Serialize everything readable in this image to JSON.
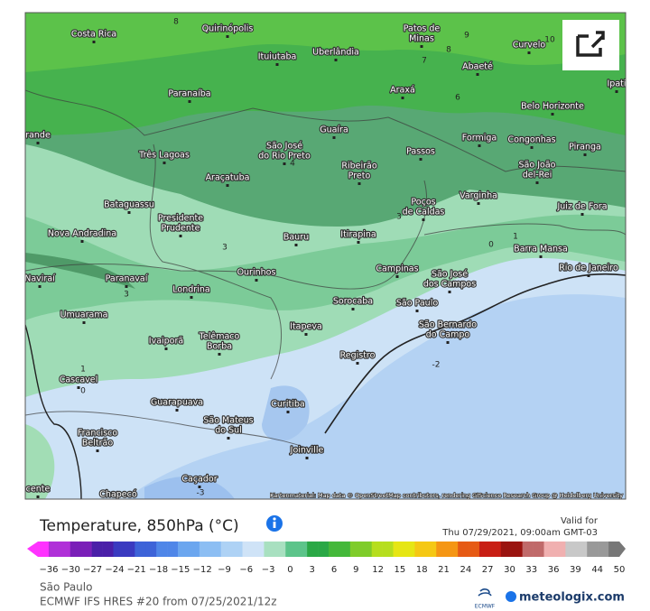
{
  "map": {
    "cities": [
      [
        "Costa Rica"
      ],
      [
        "Quirinópolis"
      ],
      [
        "Patos de",
        "Minas"
      ],
      [
        "Curvelo"
      ],
      [
        "Ituiutaba"
      ],
      [
        "Uberlândia"
      ],
      [
        "Abaeté"
      ],
      [
        "Ipati"
      ],
      [
        "Paranaíba"
      ],
      [
        "Araxá"
      ],
      [
        "Belo Horizonte"
      ],
      [
        "rande"
      ],
      [
        "Guaíra"
      ],
      [
        "Formiga"
      ],
      [
        "Congonhas"
      ],
      [
        "Três Lagoas"
      ],
      [
        "São José",
        "do Rio Preto"
      ],
      [
        "Passos"
      ],
      [
        "Piranga"
      ],
      [
        "Ribeirão",
        "Preto"
      ],
      [
        "São João",
        "del-Rei"
      ],
      [
        "Araçatuba"
      ],
      [
        "Poços",
        "de Caldas"
      ],
      [
        "Varginha"
      ],
      [
        "Juiz de Fora"
      ],
      [
        "Bataguassu"
      ],
      [
        "Presidente",
        "Prudente"
      ],
      [
        "Nova Andradina"
      ],
      [
        "Bauru"
      ],
      [
        "Itirapina"
      ],
      [
        "Barra Mansa"
      ],
      [
        "Rio de Janeiro"
      ],
      [
        "Naviraí"
      ],
      [
        "Paranavaí"
      ],
      [
        "Ourinhos"
      ],
      [
        "Campinas"
      ],
      [
        "São José",
        "dos Campos"
      ],
      [
        "Londrina"
      ],
      [
        "Sorocaba"
      ],
      [
        "São Paulo"
      ],
      [
        "São Bernardo",
        "do Campo"
      ],
      [
        "Umuarama"
      ],
      [
        "Itapeva"
      ],
      [
        "Ivaiporã"
      ],
      [
        "Telêmaco",
        "Borba"
      ],
      [
        "Registro"
      ],
      [
        "Cascavel"
      ],
      [
        "Guarapuava"
      ],
      [
        "Curitiba"
      ],
      [
        "São Mateus",
        "do Sul"
      ],
      [
        "Francisco",
        "Beltrão"
      ],
      [
        "Joinville"
      ],
      [
        "Caçador"
      ],
      [
        "Chapecó"
      ],
      [
        "cente"
      ]
    ],
    "contours": [
      "8",
      "9",
      "8",
      "7",
      "10",
      "6",
      "4",
      "3",
      "3",
      "3",
      "1",
      "0",
      "1",
      "0",
      "-2",
      "-3"
    ],
    "attribution": "Kartenmaterial: Map data © OpenStreetMap contributors, rendering GIScience Research Group @ Heidelberg University"
  },
  "legend": {
    "title": "Temperature, 850hPa (°C)",
    "valid_label": "Valid for",
    "valid_time": "Thu 07/29/2021, 09:00am GMT-03",
    "ticks": [
      "−36",
      "−30",
      "−27",
      "−24",
      "−21",
      "−18",
      "−15",
      "−12",
      "−9",
      "−6",
      "−3",
      "0",
      "3",
      "6",
      "9",
      "12",
      "15",
      "18",
      "21",
      "24",
      "27",
      "30",
      "33",
      "36",
      "39",
      "44",
      "50"
    ]
  },
  "footer": {
    "location": "São Paulo",
    "model": "ECMWF IFS HRES #20 from 07/25/2021/12z",
    "ecmwf": "ECMWF",
    "brand": "meteologix.com"
  }
}
